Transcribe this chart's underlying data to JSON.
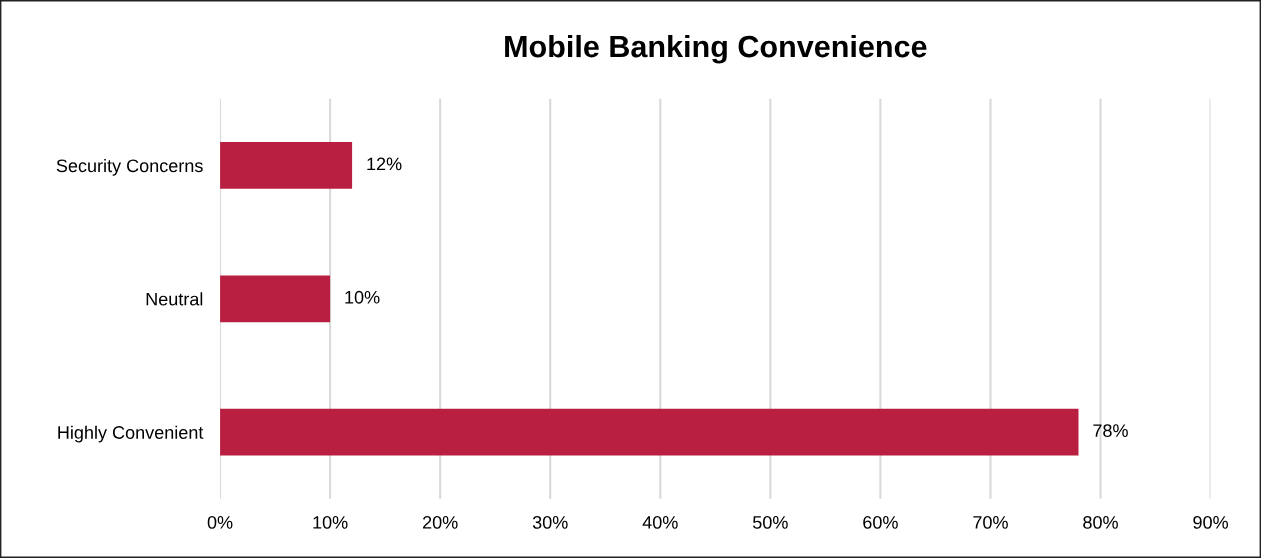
{
  "chart_data": {
    "type": "bar",
    "orientation": "horizontal",
    "title": "Mobile Banking Convenience",
    "categories": [
      "Security Concerns",
      "Neutral",
      "Highly Convenient"
    ],
    "values": [
      12,
      10,
      78
    ],
    "color": "#b91f41",
    "value_labels": [
      "12%",
      "10%",
      "78%"
    ],
    "xlim": [
      0,
      90
    ],
    "xticks": [
      {
        "value": 0,
        "label": "0%"
      },
      {
        "value": 10,
        "label": "10%"
      },
      {
        "value": 20,
        "label": "20%"
      },
      {
        "value": 30,
        "label": "30%"
      },
      {
        "value": 40,
        "label": "40%"
      },
      {
        "value": 50,
        "label": "50%"
      },
      {
        "value": 60,
        "label": "60%"
      },
      {
        "value": 70,
        "label": "70%"
      },
      {
        "value": 80,
        "label": "80%"
      },
      {
        "value": 90,
        "label": "90%"
      }
    ],
    "grid": "x",
    "legend": false
  }
}
